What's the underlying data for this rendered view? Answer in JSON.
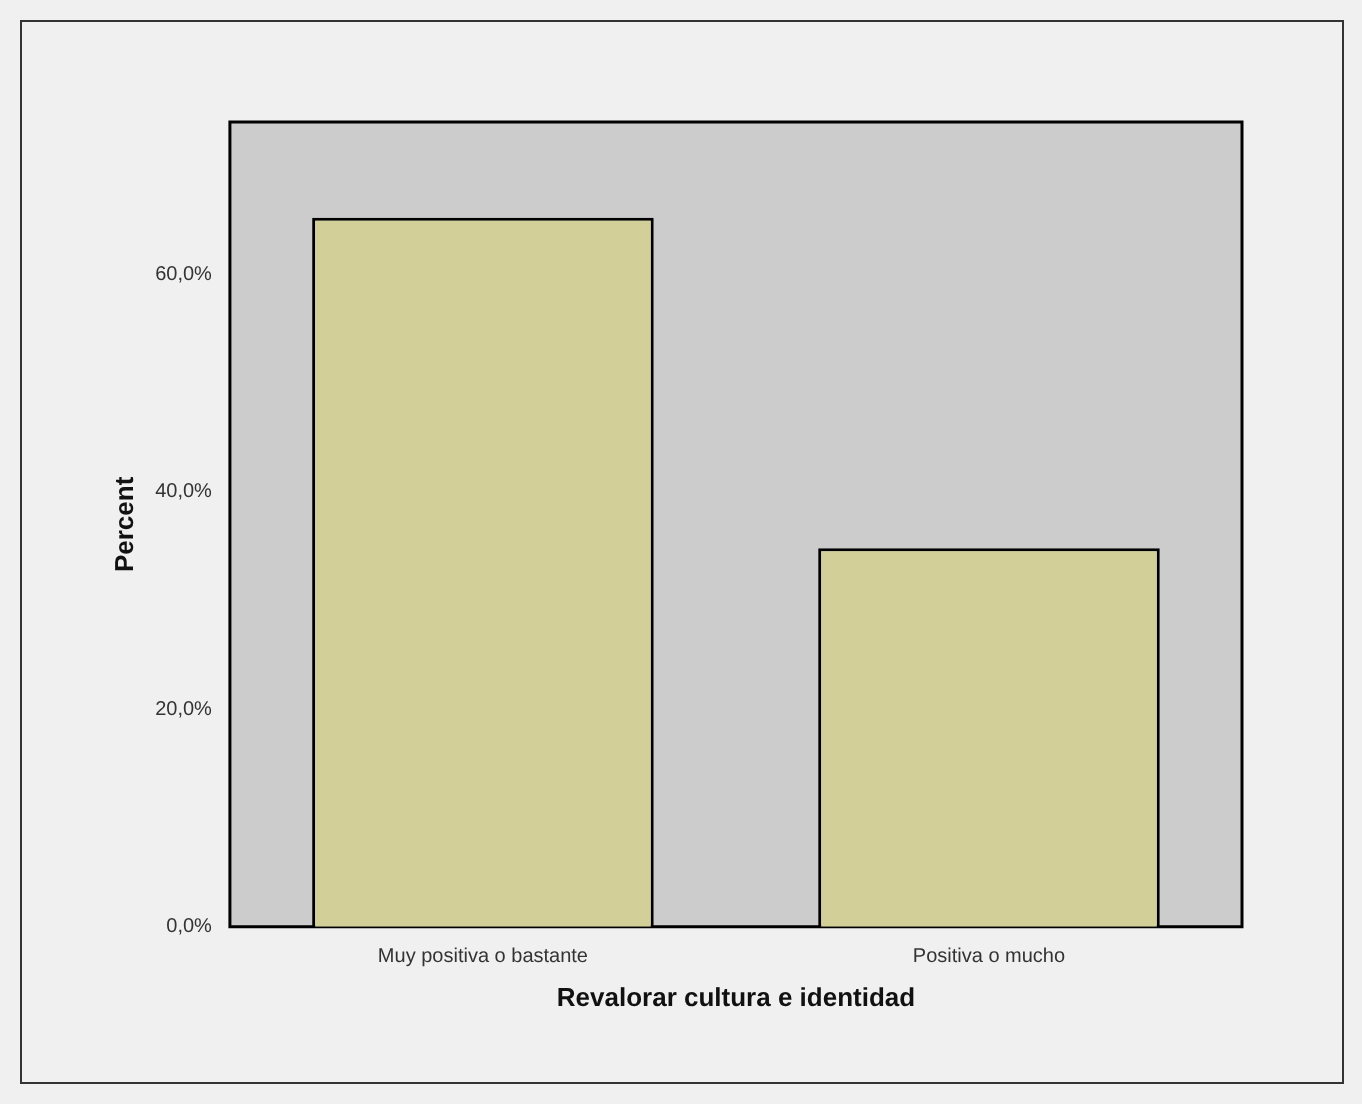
{
  "chart_data": {
    "type": "bar",
    "xlabel": "Revalorar cultura e identidad",
    "ylabel": "Percent",
    "categories": [
      "Muy positiva o bastante",
      "Positiva o mucho"
    ],
    "values": [
      65.2,
      34.8
    ],
    "color": "#d3cf98",
    "ylim": [
      0,
      74
    ],
    "yticks": [
      {
        "value": 0,
        "label": "0,0%"
      },
      {
        "value": 20,
        "label": "20,0%"
      },
      {
        "value": 40,
        "label": "40,0%"
      },
      {
        "value": 60,
        "label": "60,0%"
      }
    ],
    "grid": false,
    "legend": false
  }
}
